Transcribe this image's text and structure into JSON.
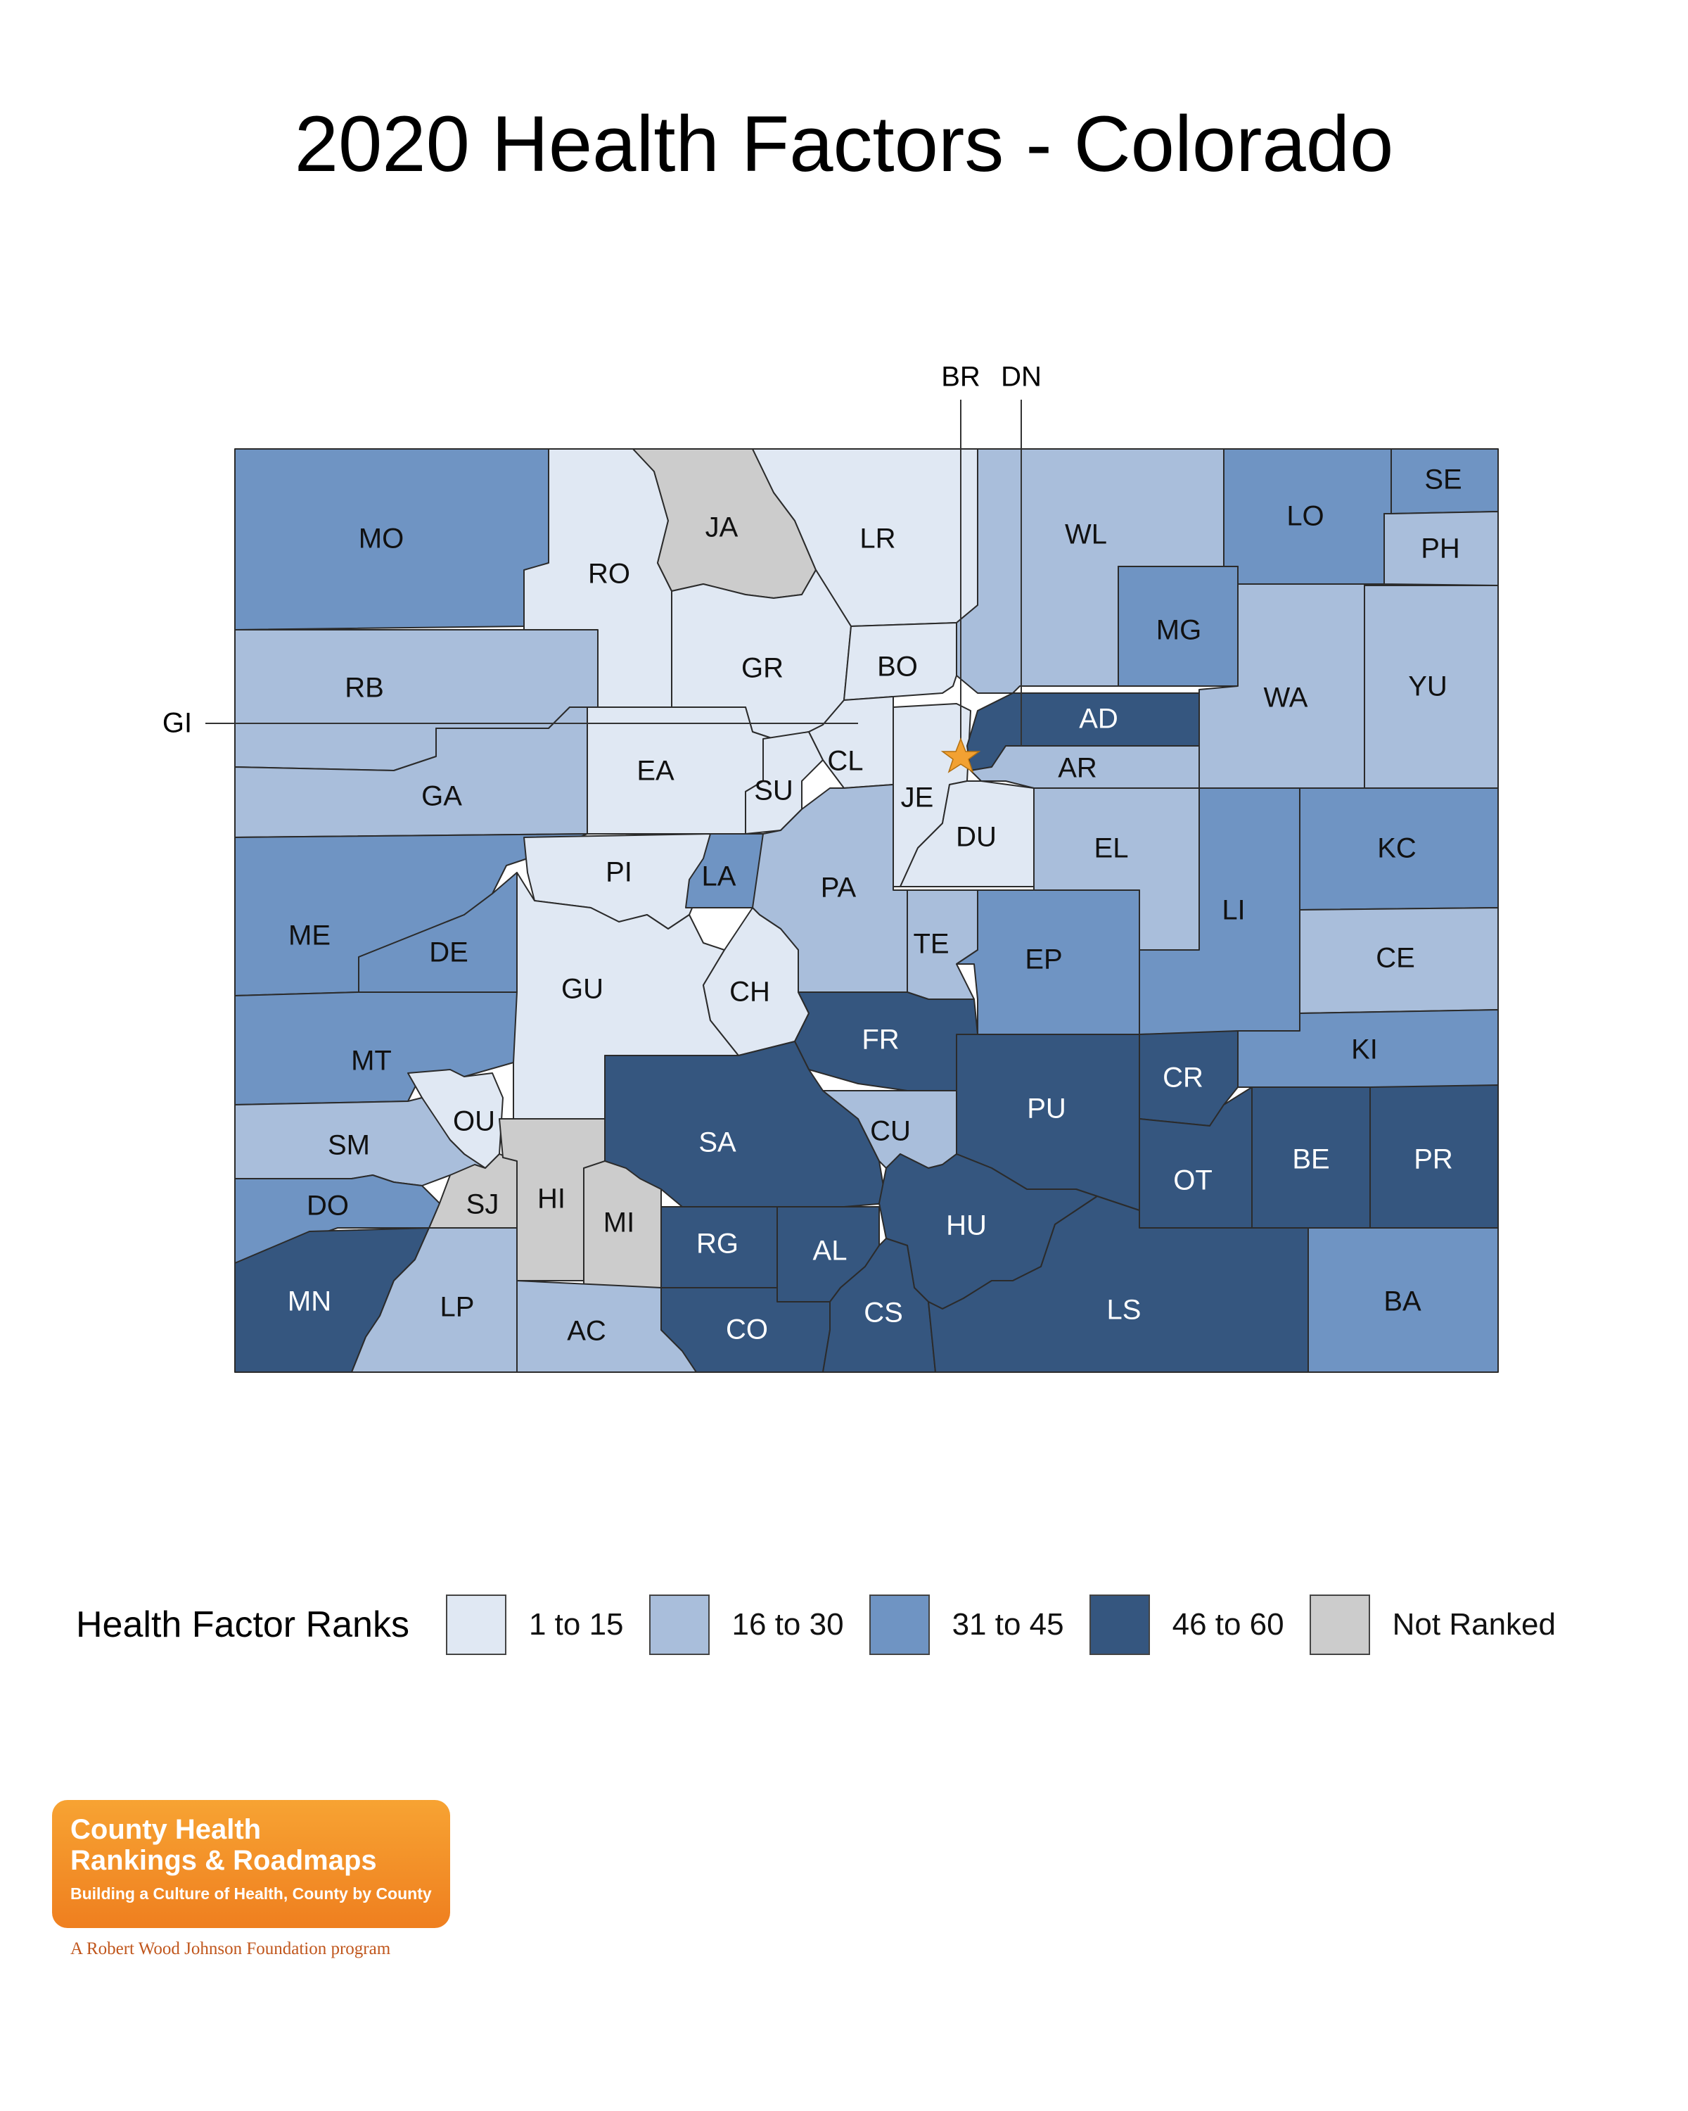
{
  "title": "2020 Health Factors - Colorado",
  "colors": {
    "rank_1_15": "#e0e8f3",
    "rank_16_30": "#a9bedb",
    "rank_31_45": "#6f94c3",
    "rank_46_60": "#35567f",
    "not_ranked": "#cccccc",
    "star": "#f2a132"
  },
  "legend": {
    "title": "Health Factor Ranks",
    "items": [
      {
        "label": "1 to 15",
        "color": "#e0e8f3"
      },
      {
        "label": "16 to 30",
        "color": "#a9bedb"
      },
      {
        "label": "31 to 45",
        "color": "#6f94c3"
      },
      {
        "label": "46 to 60",
        "color": "#35567f"
      },
      {
        "label": "Not Ranked",
        "color": "#cccccc"
      }
    ]
  },
  "callouts": {
    "br": "BR",
    "dn": "DN",
    "gi": "GI"
  },
  "counties": {
    "MO": {
      "label": "MO",
      "rank_class": "31 to 45"
    },
    "RO": {
      "label": "RO",
      "rank_class": "1 to 15"
    },
    "JA": {
      "label": "JA",
      "rank_class": "Not Ranked"
    },
    "LR": {
      "label": "LR",
      "rank_class": "1 to 15"
    },
    "WL": {
      "label": "WL",
      "rank_class": "16 to 30"
    },
    "LO": {
      "label": "LO",
      "rank_class": "31 to 45"
    },
    "SE": {
      "label": "SE",
      "rank_class": "31 to 45"
    },
    "PH": {
      "label": "PH",
      "rank_class": "16 to 30"
    },
    "RB": {
      "label": "RB",
      "rank_class": "16 to 30"
    },
    "GR": {
      "label": "GR",
      "rank_class": "1 to 15"
    },
    "BO": {
      "label": "BO",
      "rank_class": "1 to 15"
    },
    "MG": {
      "label": "MG",
      "rank_class": "31 to 45"
    },
    "WA": {
      "label": "WA",
      "rank_class": "16 to 30"
    },
    "YU": {
      "label": "YU",
      "rank_class": "16 to 30"
    },
    "GA": {
      "label": "GA",
      "rank_class": "16 to 30"
    },
    "EA": {
      "label": "EA",
      "rank_class": "1 to 15"
    },
    "SU": {
      "label": "SU",
      "rank_class": "1 to 15"
    },
    "CL": {
      "label": "CL",
      "rank_class": "1 to 15"
    },
    "JE": {
      "label": "JE",
      "rank_class": "1 to 15"
    },
    "AD": {
      "label": "AD",
      "rank_class": "46 to 60"
    },
    "AR": {
      "label": "AR",
      "rank_class": "16 to 30"
    },
    "DU": {
      "label": "DU",
      "rank_class": "1 to 15"
    },
    "EL": {
      "label": "EL",
      "rank_class": "16 to 30"
    },
    "KC": {
      "label": "KC",
      "rank_class": "31 to 45"
    },
    "ME": {
      "label": "ME",
      "rank_class": "31 to 45"
    },
    "DE": {
      "label": "DE",
      "rank_class": "31 to 45"
    },
    "PI": {
      "label": "PI",
      "rank_class": "1 to 15"
    },
    "LA": {
      "label": "LA",
      "rank_class": "31 to 45"
    },
    "PA": {
      "label": "PA",
      "rank_class": "16 to 30"
    },
    "TE": {
      "label": "TE",
      "rank_class": "16 to 30"
    },
    "EP": {
      "label": "EP",
      "rank_class": "31 to 45"
    },
    "LI": {
      "label": "LI",
      "rank_class": "31 to 45"
    },
    "CE": {
      "label": "CE",
      "rank_class": "16 to 30"
    },
    "GU": {
      "label": "GU",
      "rank_class": "1 to 15"
    },
    "CH": {
      "label": "CH",
      "rank_class": "1 to 15"
    },
    "FR": {
      "label": "FR",
      "rank_class": "46 to 60"
    },
    "MT": {
      "label": "MT",
      "rank_class": "31 to 45"
    },
    "KI": {
      "label": "KI",
      "rank_class": "31 to 45"
    },
    "CR": {
      "label": "CR",
      "rank_class": "46 to 60"
    },
    "OU": {
      "label": "OU",
      "rank_class": "1 to 15"
    },
    "SA": {
      "label": "SA",
      "rank_class": "46 to 60"
    },
    "CU": {
      "label": "CU",
      "rank_class": "16 to 30"
    },
    "PU": {
      "label": "PU",
      "rank_class": "46 to 60"
    },
    "SM": {
      "label": "SM",
      "rank_class": "16 to 30"
    },
    "SJ": {
      "label": "SJ",
      "rank_class": "Not Ranked"
    },
    "HI": {
      "label": "HI",
      "rank_class": "Not Ranked"
    },
    "MI": {
      "label": "MI",
      "rank_class": "Not Ranked"
    },
    "DO": {
      "label": "DO",
      "rank_class": "31 to 45"
    },
    "RG": {
      "label": "RG",
      "rank_class": "46 to 60"
    },
    "AL": {
      "label": "AL",
      "rank_class": "46 to 60"
    },
    "HU": {
      "label": "HU",
      "rank_class": "46 to 60"
    },
    "OT": {
      "label": "OT",
      "rank_class": "46 to 60"
    },
    "BE": {
      "label": "BE",
      "rank_class": "46 to 60"
    },
    "PR": {
      "label": "PR",
      "rank_class": "46 to 60"
    },
    "MN": {
      "label": "MN",
      "rank_class": "46 to 60"
    },
    "LP": {
      "label": "LP",
      "rank_class": "16 to 30"
    },
    "AC": {
      "label": "AC",
      "rank_class": "16 to 30"
    },
    "CO": {
      "label": "CO",
      "rank_class": "46 to 60"
    },
    "CS": {
      "label": "CS",
      "rank_class": "46 to 60"
    },
    "LS": {
      "label": "LS",
      "rank_class": "46 to 60"
    },
    "BA": {
      "label": "BA",
      "rank_class": "31 to 45"
    }
  },
  "logo": {
    "line1": "County Health",
    "line2": "Rankings & Roadmaps",
    "tagline": "Building a Culture of Health, County by County",
    "foundation": "A Robert Wood Johnson Foundation program"
  }
}
